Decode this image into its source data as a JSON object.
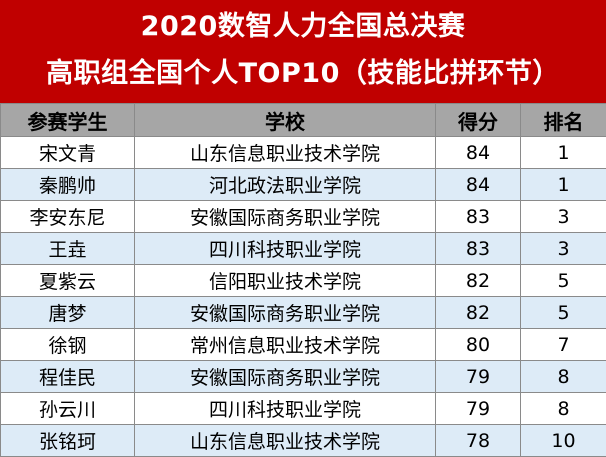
{
  "title": {
    "line1": "2020数智人力全国总决赛",
    "line2": "高职组全国个人TOP10（技能比拼环节）"
  },
  "table": {
    "headers": [
      "参赛学生",
      "学校",
      "得分",
      "排名"
    ],
    "rows": [
      [
        "宋文青",
        "山东信息职业技术学院",
        "84",
        "1"
      ],
      [
        "秦鹏帅",
        "河北政法职业学院",
        "84",
        "1"
      ],
      [
        "李安东尼",
        "安徽国际商务职业学院",
        "83",
        "3"
      ],
      [
        "王垚",
        "四川科技职业学院",
        "83",
        "3"
      ],
      [
        "夏紫云",
        "信阳职业技术学院",
        "82",
        "5"
      ],
      [
        "唐梦",
        "安徽国际商务职业学院",
        "82",
        "5"
      ],
      [
        "徐钢",
        "常州信息职业技术学院",
        "80",
        "7"
      ],
      [
        "程佳民",
        "安徽国际商务职业学院",
        "79",
        "8"
      ],
      [
        "孙云川",
        "四川科技职业学院",
        "79",
        "8"
      ],
      [
        "张铭珂",
        "山东信息职业技术学院",
        "78",
        "10"
      ]
    ]
  },
  "colors": {
    "header_red": "#c00000",
    "column_header_gray": "#a6a6a6",
    "stripe_blue": "#ddebf7"
  }
}
